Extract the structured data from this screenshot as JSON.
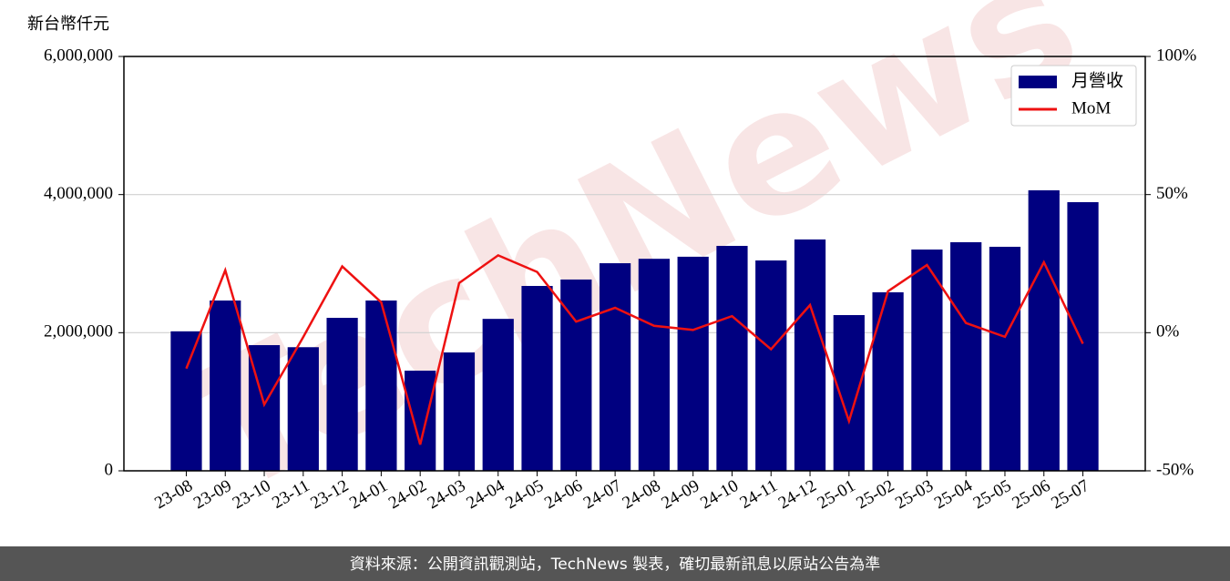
{
  "chart_data": {
    "type": "bar-line",
    "y_label": "新台幣仟元",
    "watermark": "TechNews",
    "footer": "資料來源：公開資訊觀測站，TechNews 製表，確切最新訊息以原站公告為準",
    "categories": [
      "23-08",
      "23-09",
      "23-10",
      "23-11",
      "23-12",
      "24-01",
      "24-02",
      "24-03",
      "24-04",
      "24-05",
      "24-06",
      "24-07",
      "24-08",
      "24-09",
      "24-10",
      "24-11",
      "24-12",
      "25-01",
      "25-02",
      "25-03",
      "25-04",
      "25-05",
      "25-06",
      "25-07"
    ],
    "series": [
      {
        "name": "月營收",
        "type": "bar",
        "color": "#000080",
        "values": [
          2020000,
          2466000,
          1820000,
          1790000,
          2215000,
          2466000,
          1450000,
          1714000,
          2200000,
          2677000,
          2770000,
          3006000,
          3070000,
          3100000,
          3257000,
          3046000,
          3350000,
          2255000,
          2585000,
          3204000,
          3310000,
          3244000,
          4062000,
          3890000
        ]
      },
      {
        "name": "MoM",
        "type": "line",
        "axis": "y2",
        "color": "#ee1111",
        "values": [
          -13,
          22.6,
          -26,
          -1.6,
          24,
          11,
          -40.5,
          18,
          28,
          22,
          4,
          9,
          2.5,
          1,
          6,
          -6,
          10,
          -32,
          15,
          24.5,
          3.5,
          -1.5,
          25.5,
          -4
        ]
      }
    ],
    "ylim": [
      0,
      6000000
    ],
    "yticks": [
      0,
      {
        "value": 2000000,
        "label": "2,000,000"
      },
      {
        "value": 4000000,
        "label": "4,000,000"
      },
      {
        "value": 6000000,
        "label": "6,000,000"
      }
    ],
    "y2lim": [
      -50,
      100
    ],
    "y2ticks": [
      {
        "value": -50,
        "label": "-50%"
      },
      {
        "value": 0,
        "label": "0%"
      },
      {
        "value": 50,
        "label": "50%"
      },
      {
        "value": 100,
        "label": "100%"
      }
    ],
    "grid": true,
    "legend": "upper right"
  }
}
